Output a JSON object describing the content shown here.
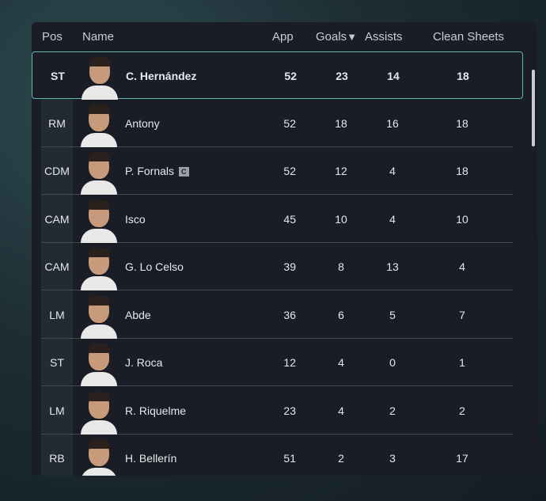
{
  "table": {
    "headers": {
      "pos": "Pos",
      "name": "Name",
      "app": "App",
      "goals": "Goals",
      "assists": "Assists",
      "clean_sheets": "Clean Sheets"
    },
    "sort_icon": "triangle-down-icon",
    "accent_color": "#5fb8b4",
    "rows": [
      {
        "pos": "ST",
        "name": "C. Hernández",
        "app": "52",
        "goals": "23",
        "assists": "14",
        "clean_sheets": "18",
        "selected": true
      },
      {
        "pos": "RM",
        "name": "Antony",
        "app": "52",
        "goals": "18",
        "assists": "16",
        "clean_sheets": "18"
      },
      {
        "pos": "CDM",
        "name": "P. Fornals",
        "badge": "C",
        "app": "52",
        "goals": "12",
        "assists": "4",
        "clean_sheets": "18"
      },
      {
        "pos": "CAM",
        "name": "Isco",
        "app": "45",
        "goals": "10",
        "assists": "4",
        "clean_sheets": "10"
      },
      {
        "pos": "CAM",
        "name": "G. Lo Celso",
        "app": "39",
        "goals": "8",
        "assists": "13",
        "clean_sheets": "4"
      },
      {
        "pos": "LM",
        "name": "Abde",
        "app": "36",
        "goals": "6",
        "assists": "5",
        "clean_sheets": "7"
      },
      {
        "pos": "ST",
        "name": "J. Roca",
        "app": "12",
        "goals": "4",
        "assists": "0",
        "clean_sheets": "1"
      },
      {
        "pos": "LM",
        "name": "R. Riquelme",
        "app": "23",
        "goals": "4",
        "assists": "2",
        "clean_sheets": "2"
      },
      {
        "pos": "RB",
        "name": "H. Bellerín",
        "app": "51",
        "goals": "2",
        "assists": "3",
        "clean_sheets": "17"
      }
    ]
  }
}
